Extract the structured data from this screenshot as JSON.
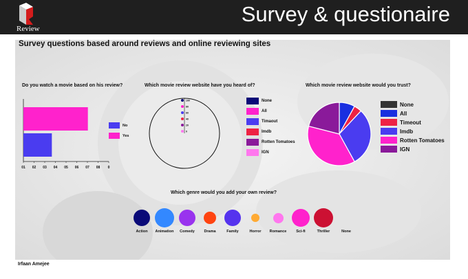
{
  "header": {
    "logo_text": "Review",
    "title": "Survey & questionaire"
  },
  "subtitle": "Survey questions based around reviews and online reviewing sites",
  "author": "Irfaan Amejee",
  "chart_data": [
    {
      "type": "bar",
      "orientation": "horizontal",
      "title": "Do you watch a movie based on his review?",
      "categories": [
        "Yes",
        "No"
      ],
      "values": [
        0.78,
        0.4
      ],
      "colors": [
        "#ff22cc",
        "#4a3cf0"
      ],
      "xlim": [
        0.1,
        1.0
      ],
      "ticks": [
        "01",
        "02",
        "03",
        "04",
        "05",
        "06",
        "07",
        "08",
        "0"
      ],
      "legend": [
        {
          "label": "No",
          "color": "#4a3cf0"
        },
        {
          "label": "Yes",
          "color": "#ff22cc"
        }
      ],
      "legend_position": "right"
    },
    {
      "type": "radar",
      "title": "Which movie review website have you heard of?",
      "ring_labels": [
        "100",
        "80",
        "60",
        "40",
        "20",
        "0"
      ],
      "legend": [
        {
          "label": "None",
          "color": "#0a0a78"
        },
        {
          "label": "All",
          "color": "#ff22cc"
        },
        {
          "label": "Timaout",
          "color": "#4a3cf0"
        },
        {
          "label": "Imdb",
          "color": "#ee2244"
        },
        {
          "label": "Rotten Tomatoes",
          "color": "#8a1a9a"
        },
        {
          "label": "IGN",
          "color": "#ff77ee"
        }
      ],
      "legend_position": "right"
    },
    {
      "type": "pie",
      "title": "Which movie review website would you trust?",
      "categories": [
        "None",
        "All",
        "Timeout",
        "Imdb",
        "Rotten Tomatoes",
        "IGN"
      ],
      "values": [
        0,
        8,
        4,
        30,
        37,
        21
      ],
      "colors": [
        "#333333",
        "#1a2fe0",
        "#ee2244",
        "#4a3cf0",
        "#ff22cc",
        "#8a1a9a"
      ],
      "legend_position": "right"
    },
    {
      "type": "bubble",
      "title": "Which genre would you add your own review?",
      "categories": [
        "Action",
        "Animation",
        "Comedy",
        "Drama",
        "Family",
        "Horror",
        "Romance",
        "Sci-fi",
        "Thriller",
        "None"
      ],
      "values": [
        24,
        28,
        24,
        18,
        24,
        12,
        15,
        26,
        28,
        0
      ],
      "colors": [
        "#0a0a78",
        "#3388ff",
        "#9933ee",
        "#ff4411",
        "#5533ee",
        "#ffaa33",
        "#ff77ee",
        "#ff22cc",
        "#cc1133",
        "#cccccc"
      ]
    }
  ]
}
